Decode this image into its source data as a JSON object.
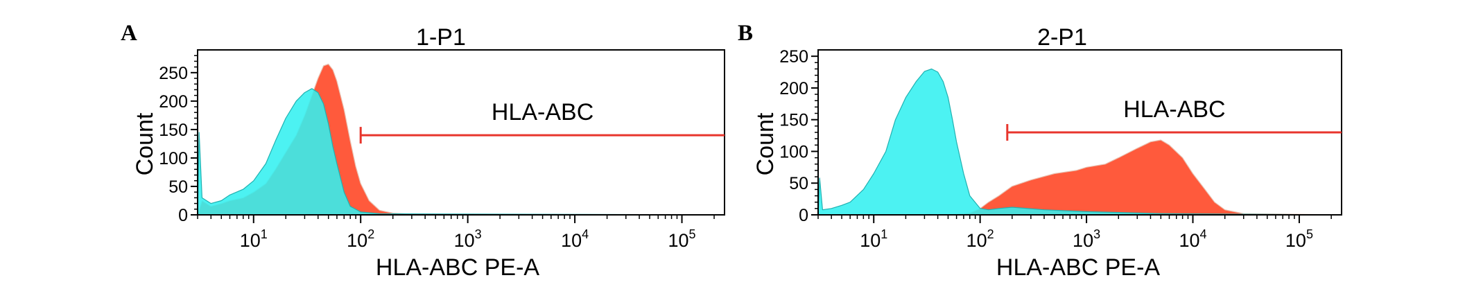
{
  "charts": [
    {
      "panel_label": "A",
      "title": "1-P1",
      "xlabel": "HLA-ABC PE-A",
      "ylabel": "Count",
      "gate_label": "HLA-ABC",
      "yticks": [
        0,
        50,
        100,
        150,
        200,
        250
      ],
      "xtick_exponents": [
        1,
        2,
        3,
        4,
        5
      ]
    },
    {
      "panel_label": "B",
      "title": "2-P1",
      "xlabel": "HLA-ABC PE-A",
      "ylabel": "Count",
      "gate_label": "HLA-ABC",
      "yticks": [
        0,
        50,
        100,
        150,
        200,
        250
      ],
      "xtick_exponents": [
        1,
        2,
        3,
        4,
        5
      ]
    }
  ],
  "chart_data": [
    {
      "type": "area",
      "title": "1-P1",
      "xlabel": "HLA-ABC PE-A",
      "ylabel": "Count",
      "xscale": "log",
      "xlim": [
        3,
        250000
      ],
      "ylim": [
        0,
        290
      ],
      "gate": {
        "label": "HLA-ABC",
        "x_start": 100,
        "x_end": 250000,
        "y": 140
      },
      "series": [
        {
          "color": "#ff5a3c",
          "x": [
            3,
            3.3,
            4,
            5,
            6,
            8,
            10,
            13,
            16,
            20,
            25,
            30,
            35,
            40,
            45,
            50,
            55,
            60,
            70,
            80,
            90,
            100,
            120,
            150,
            200,
            300,
            500,
            1000,
            10000,
            100000,
            250000
          ],
          "y": [
            0,
            25,
            15,
            20,
            25,
            30,
            40,
            55,
            80,
            110,
            140,
            175,
            210,
            240,
            262,
            265,
            255,
            235,
            185,
            130,
            85,
            55,
            25,
            8,
            3,
            1,
            0,
            0,
            0,
            0,
            0
          ]
        },
        {
          "color": "#33f0f0",
          "x": [
            3,
            3.1,
            3.3,
            4,
            5,
            6,
            8,
            10,
            13,
            16,
            20,
            25,
            30,
            35,
            40,
            45,
            50,
            55,
            60,
            70,
            80,
            100,
            150,
            250000
          ],
          "y": [
            0,
            145,
            30,
            20,
            25,
            35,
            45,
            60,
            90,
            130,
            170,
            200,
            215,
            222,
            215,
            195,
            160,
            120,
            90,
            40,
            15,
            5,
            2,
            0
          ]
        }
      ]
    },
    {
      "type": "area",
      "title": "2-P1",
      "xlabel": "HLA-ABC PE-A",
      "ylabel": "Count",
      "xscale": "log",
      "xlim": [
        3,
        250000
      ],
      "ylim": [
        0,
        260
      ],
      "gate": {
        "label": "HLA-ABC",
        "x_start": 180,
        "x_end": 250000,
        "y": 130
      },
      "series": [
        {
          "color": "#ff5a3c",
          "x": [
            3,
            50,
            80,
            100,
            120,
            150,
            200,
            300,
            500,
            800,
            1000,
            1500,
            2000,
            3000,
            4000,
            5000,
            6000,
            8000,
            10000,
            13000,
            16000,
            20000,
            30000,
            250000
          ],
          "y": [
            0,
            0,
            3,
            10,
            20,
            30,
            45,
            55,
            65,
            70,
            75,
            80,
            90,
            105,
            115,
            118,
            110,
            90,
            65,
            40,
            20,
            8,
            2,
            0
          ]
        },
        {
          "color": "#33f0f0",
          "x": [
            3,
            3.1,
            3.3,
            4,
            5,
            6,
            8,
            10,
            13,
            16,
            20,
            25,
            30,
            35,
            40,
            45,
            50,
            55,
            60,
            70,
            80,
            100,
            120,
            150,
            200,
            400,
            1000,
            5000,
            250000
          ],
          "y": [
            0,
            58,
            8,
            10,
            15,
            20,
            40,
            65,
            100,
            150,
            185,
            210,
            226,
            230,
            225,
            210,
            185,
            150,
            115,
            65,
            30,
            10,
            8,
            10,
            12,
            8,
            5,
            2,
            0
          ]
        }
      ]
    }
  ]
}
